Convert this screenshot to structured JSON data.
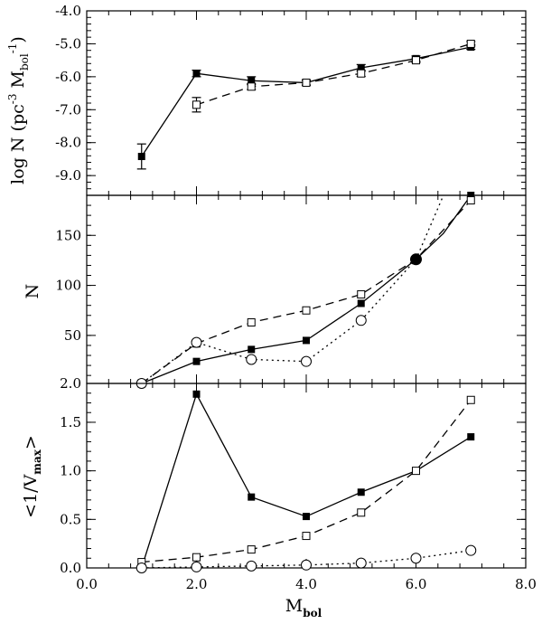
{
  "chart_data": [
    {
      "type": "line",
      "ylabel_main": "log N (pc",
      "ylabel_sup1": "-3",
      "ylabel_mid": " M",
      "ylabel_sub": "bol",
      "ylabel_sup2": "-1",
      "ylabel_end": ")",
      "xlim": [
        0,
        8
      ],
      "ylim": [
        -9.6,
        -4.0
      ],
      "yticks": [
        "-9.0",
        "-8.0",
        "-7.0",
        "-6.0",
        "-5.0",
        "-4.0"
      ],
      "series": [
        {
          "style": "solid",
          "marker": "filled-square",
          "x": [
            1,
            2,
            3,
            4,
            5,
            6,
            7
          ],
          "y": [
            -8.42,
            -5.9,
            -6.12,
            -6.18,
            -5.73,
            -5.45,
            -5.1
          ],
          "err": [
            0.38,
            0.1,
            0.12,
            0.08,
            0.1,
            0.08,
            0.07
          ]
        },
        {
          "style": "dashed",
          "marker": "open-square",
          "x": [
            2,
            3,
            4,
            5,
            6,
            7
          ],
          "y": [
            -6.85,
            -6.3,
            -6.18,
            -5.9,
            -5.5,
            -5.0
          ],
          "err": [
            0.22,
            0.09,
            0.07,
            0.09,
            0.07,
            0.07
          ]
        }
      ]
    },
    {
      "type": "line",
      "ylabel": "N",
      "xlim": [
        0,
        8
      ],
      "ylim": [
        2,
        190
      ],
      "yticks": [
        "2.0",
        "50",
        "100",
        "150"
      ],
      "series": [
        {
          "style": "solid",
          "marker": "filled-square",
          "x": [
            1,
            2,
            3,
            4,
            5,
            6,
            6.5,
            7
          ],
          "y": [
            2,
            24,
            36,
            45,
            82,
            126,
            152,
            190
          ]
        },
        {
          "style": "dashed",
          "marker": "open-square",
          "x": [
            1,
            2,
            3,
            4,
            5,
            6,
            7
          ],
          "y": [
            2,
            42,
            63,
            75,
            91,
            126,
            185
          ]
        },
        {
          "style": "dotted",
          "marker": "open-circle",
          "x": [
            1,
            2,
            3,
            4,
            5,
            6,
            6.5
          ],
          "y": [
            2,
            43,
            26,
            24,
            65,
            126,
            190
          ]
        }
      ]
    },
    {
      "type": "line",
      "ylabel_open": "<1/V",
      "ylabel_sub": "max",
      "ylabel_close": ">",
      "xlabel_main": "M",
      "xlabel_sub": "bol",
      "xlim": [
        0,
        8
      ],
      "ylim": [
        0,
        1.9
      ],
      "yticks": [
        "0.0",
        "0.5",
        "1.0",
        "1.5"
      ],
      "xticks": [
        "0.0",
        "2.0",
        "4.0",
        "6.0",
        "8.0"
      ],
      "series": [
        {
          "style": "solid",
          "marker": "filled-square",
          "x": [
            1,
            2,
            3,
            4,
            5,
            6,
            7
          ],
          "y": [
            0.0,
            1.79,
            0.73,
            0.53,
            0.78,
            1.0,
            1.35
          ]
        },
        {
          "style": "dashed",
          "marker": "open-square",
          "x": [
            1,
            2,
            3,
            4,
            5,
            6,
            7
          ],
          "y": [
            0.06,
            0.11,
            0.19,
            0.33,
            0.57,
            1.0,
            1.73
          ]
        },
        {
          "style": "dotted",
          "marker": "open-circle",
          "x": [
            1,
            2,
            3,
            4,
            5,
            6,
            7
          ],
          "y": [
            0.0,
            0.01,
            0.02,
            0.03,
            0.05,
            0.1,
            0.18
          ]
        }
      ]
    }
  ]
}
